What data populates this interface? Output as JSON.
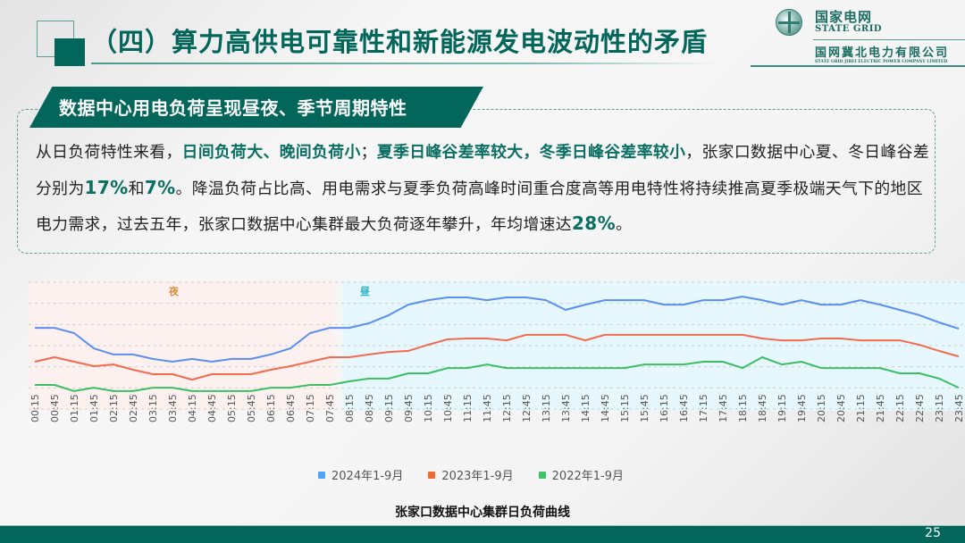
{
  "header": {
    "title": "（四）算力高供电可靠性和新能源发电波动性的矛盾",
    "logo": {
      "cn_name": "国家电网",
      "en_name": "STATE GRID",
      "company_cn": "国网冀北电力有限公司",
      "company_en": "STATE GRID JIBEI ELECTRIC POWER COMPANY LIMITED",
      "icon": "state-grid-globe-icon"
    }
  },
  "section": {
    "banner": "数据中心用电负荷呈现昼夜、季节周期特性",
    "paragraph": [
      {
        "text": "从日负荷特性来看，",
        "style": "normal"
      },
      {
        "text": "日间负荷大、晚间负荷小",
        "style": "highlight"
      },
      {
        "text": "；",
        "style": "normal"
      },
      {
        "text": "夏季日峰谷差率较大，冬季日峰谷差率较小",
        "style": "highlight"
      },
      {
        "text": "，张家口数据中心夏、冬日峰谷差分别为",
        "style": "normal"
      },
      {
        "text": "17%",
        "style": "number"
      },
      {
        "text": "和",
        "style": "normal"
      },
      {
        "text": "7%",
        "style": "number"
      },
      {
        "text": "。降温负荷占比高、用电需求与夏季负荷高峰时间重合度高等用电特性将持续推高夏季极端天气下的地区电力需求，过去五年，张家口数据中心集群最大负荷逐年攀升，年均增速达",
        "style": "normal"
      },
      {
        "text": "28%",
        "style": "number"
      },
      {
        "text": "。",
        "style": "normal"
      }
    ]
  },
  "chart": {
    "night_label": "夜",
    "day_label": "昼",
    "caption": "张家口数据中心集群日负荷曲线",
    "colors": {
      "series_2024": "#5b8ff0",
      "series_2023": "#f26b4f",
      "series_2022": "#3cbf63",
      "night_band": "#fdf1ef",
      "day_band": "#e6f7fd",
      "grid": "#c8cfd0"
    }
  },
  "chart_data": {
    "type": "line",
    "title": "张家口数据中心集群日负荷曲线",
    "xlabel": "",
    "ylabel": "",
    "y_axis_labels_shown": false,
    "units": "relative (gridline units, 0 = lowest gridline, 6 = top gridline)",
    "ylim": [
      0,
      6
    ],
    "grid": true,
    "legend_position": "bottom",
    "annotations": [
      {
        "label": "夜",
        "x_range": [
          "00:15",
          "07:45"
        ],
        "color": "#fdf1ef"
      },
      {
        "label": "昼",
        "x_range": [
          "08:15",
          "23:45"
        ],
        "color": "#e6f7fd"
      }
    ],
    "x": [
      "00:15",
      "00:45",
      "01:15",
      "01:45",
      "02:15",
      "02:45",
      "03:15",
      "03:45",
      "04:15",
      "04:45",
      "05:15",
      "05:45",
      "06:15",
      "06:45",
      "07:15",
      "07:45",
      "08:15",
      "08:45",
      "09:15",
      "09:45",
      "10:15",
      "10:45",
      "11:15",
      "11:45",
      "12:15",
      "12:45",
      "13:15",
      "13:45",
      "14:15",
      "14:45",
      "15:15",
      "15:45",
      "16:15",
      "16:45",
      "17:15",
      "17:45",
      "18:15",
      "18:45",
      "19:15",
      "19:45",
      "20:15",
      "20:45",
      "21:15",
      "21:45",
      "22:15",
      "22:45",
      "23:15",
      "23:45"
    ],
    "series": [
      {
        "name": "2024年1-9月",
        "color": "#5b8ff0",
        "values": [
          3.84,
          3.84,
          3.59,
          2.87,
          2.58,
          2.58,
          2.37,
          2.24,
          2.37,
          2.24,
          2.37,
          2.37,
          2.58,
          2.87,
          3.59,
          3.84,
          3.84,
          4.06,
          4.44,
          4.94,
          5.15,
          5.28,
          5.28,
          5.15,
          5.28,
          5.28,
          5.15,
          4.69,
          4.94,
          5.15,
          5.15,
          5.15,
          4.94,
          4.94,
          5.15,
          5.15,
          5.32,
          5.15,
          4.94,
          5.15,
          4.94,
          4.94,
          5.15,
          4.94,
          4.69,
          4.44,
          4.1,
          3.8
        ]
      },
      {
        "name": "2023年1-9月",
        "color": "#f26b4f",
        "values": [
          2.24,
          2.45,
          2.24,
          2.03,
          2.11,
          1.86,
          1.65,
          1.65,
          1.39,
          1.65,
          1.65,
          1.65,
          1.86,
          2.03,
          2.24,
          2.45,
          2.45,
          2.58,
          2.7,
          2.75,
          3.04,
          3.3,
          3.34,
          3.34,
          3.25,
          3.51,
          3.51,
          3.51,
          3.25,
          3.51,
          3.51,
          3.51,
          3.51,
          3.51,
          3.51,
          3.51,
          3.51,
          3.34,
          3.25,
          3.25,
          3.34,
          3.34,
          3.25,
          3.25,
          3.25,
          3.04,
          2.75,
          2.49
        ]
      },
      {
        "name": "2022年1-9月",
        "color": "#3cbf63",
        "values": [
          1.14,
          1.14,
          0.85,
          1.01,
          0.85,
          0.85,
          1.01,
          1.01,
          0.85,
          0.85,
          0.85,
          0.85,
          1.01,
          1.01,
          1.14,
          1.14,
          1.31,
          1.44,
          1.44,
          1.69,
          1.69,
          1.94,
          1.94,
          2.11,
          1.94,
          1.94,
          1.94,
          1.94,
          1.94,
          1.94,
          1.94,
          2.11,
          2.11,
          2.11,
          2.24,
          2.24,
          1.94,
          2.45,
          2.11,
          2.24,
          1.94,
          1.94,
          1.94,
          1.94,
          1.69,
          1.69,
          1.44,
          1.01
        ]
      }
    ]
  },
  "legend": [
    {
      "label": "2024年1-9月",
      "color": "#4da3f5"
    },
    {
      "label": "2023年1-9月",
      "color": "#ef6a35"
    },
    {
      "label": "2022年1-9月",
      "color": "#3cc467"
    }
  ],
  "footer": {
    "page_number": "25"
  }
}
